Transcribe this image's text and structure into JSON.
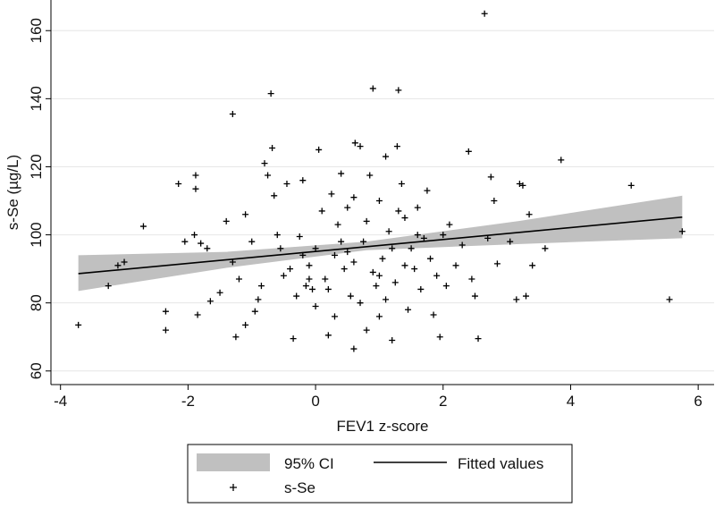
{
  "chart_data": {
    "type": "scatter",
    "xlabel": "FEV1 z-score",
    "ylabel": "s-Se (µg/L)",
    "xlim": [
      -4.15,
      6.25
    ],
    "ylim": [
      56,
      169
    ],
    "xticks": [
      -4,
      -2,
      0,
      2,
      4,
      6
    ],
    "yticks": [
      60,
      80,
      100,
      120,
      140,
      160
    ],
    "grid": true,
    "legend": "bottom",
    "ci": {
      "name": "95% CI",
      "color": "#c0c0c0",
      "x": [
        -3.72,
        -1.4,
        0.8,
        3.2,
        5.75
      ],
      "lower": [
        83.5,
        90.3,
        95.5,
        97.3,
        99
      ],
      "upper": [
        94,
        95,
        98,
        104.1,
        111.5
      ]
    },
    "fit": {
      "name": "Fitted values",
      "color": "#000000",
      "x": [
        -3.72,
        5.75
      ],
      "values": [
        88.6,
        105.2
      ]
    },
    "series": [
      {
        "name": "s-Se",
        "color": "#000000",
        "x": [
          -3.72,
          -3.25,
          -3.1,
          -3.0,
          -2.7,
          -2.35,
          -2.35,
          -2.15,
          -2.05,
          -1.9,
          -1.88,
          -1.88,
          -1.85,
          -1.8,
          -1.7,
          -1.65,
          -1.5,
          -1.4,
          -1.3,
          -1.3,
          -1.25,
          -1.2,
          -1.1,
          -1.1,
          -1.0,
          -0.95,
          -0.9,
          -0.85,
          -0.8,
          -0.75,
          -0.7,
          -0.68,
          -0.65,
          -0.6,
          -0.55,
          -0.5,
          -0.45,
          -0.4,
          -0.35,
          -0.3,
          -0.25,
          -0.2,
          -0.15,
          -0.1,
          -0.05,
          0.0,
          0.05,
          0.1,
          0.15,
          0.2,
          0.25,
          0.3,
          0.35,
          0.4,
          0.45,
          0.5,
          0.55,
          0.6,
          0.62,
          0.7,
          0.75,
          0.8,
          0.85,
          0.9,
          0.95,
          1.0,
          1.05,
          1.1,
          1.15,
          1.2,
          1.25,
          1.28,
          1.3,
          1.35,
          1.4,
          1.45,
          1.5,
          1.55,
          1.6,
          1.65,
          1.7,
          1.75,
          1.8,
          1.85,
          1.9,
          1.95,
          2.0,
          2.05,
          2.1,
          2.2,
          2.3,
          2.4,
          2.45,
          2.5,
          2.55,
          2.65,
          2.7,
          2.75,
          2.8,
          2.85,
          3.05,
          3.15,
          3.2,
          3.25,
          3.3,
          3.35,
          3.4,
          3.6,
          3.85,
          4.95,
          5.55,
          5.75,
          0.2,
          0.4,
          0.6,
          0.8,
          1.0,
          1.2,
          0.0,
          -0.2,
          0.3,
          0.7,
          1.1,
          1.4,
          1.6,
          0.5,
          0.9,
          -0.1,
          1.3,
          0.6,
          1.0
        ],
        "values": [
          73.5,
          85,
          91,
          92,
          102.5,
          77.5,
          72,
          115,
          98,
          100,
          117.5,
          113.5,
          76.5,
          97.5,
          96,
          80.5,
          83,
          104,
          135.5,
          92,
          70,
          87,
          106,
          73.5,
          98,
          77.5,
          81,
          85,
          121,
          117.5,
          141.5,
          125.5,
          111.5,
          100,
          96,
          88,
          115,
          90,
          69.5,
          82,
          99.5,
          116,
          85,
          91,
          84,
          96,
          125,
          107,
          87,
          70.5,
          112,
          94,
          103,
          118,
          90,
          108,
          82,
          66.5,
          127,
          126,
          98,
          72,
          117.5,
          143,
          85,
          110,
          93,
          123,
          101,
          69,
          86,
          126,
          142.5,
          115,
          105,
          78,
          96,
          90,
          108,
          84,
          99,
          113,
          93,
          76.5,
          88,
          70,
          100,
          85,
          103,
          91,
          97,
          124.5,
          87,
          82,
          69.5,
          165,
          99,
          117,
          110,
          91.5,
          98,
          81,
          115,
          114.5,
          82,
          106,
          91,
          96,
          122,
          114.5,
          81,
          101,
          84,
          98,
          92,
          104,
          88,
          96,
          79,
          94,
          76,
          80,
          81,
          91,
          100,
          95,
          89,
          87,
          107,
          111,
          76
        ]
      }
    ]
  }
}
